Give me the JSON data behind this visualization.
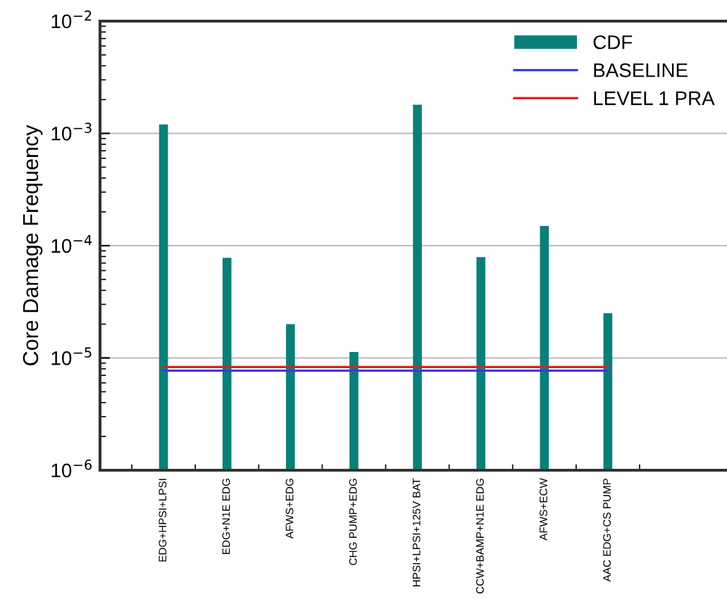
{
  "chart_data": {
    "type": "bar",
    "ylabel": "Core Damage Frequency",
    "categories": [
      "EDG+HPSI+LPSI",
      "EDG+N1E EDG",
      "AFWS+EDG",
      "CHG PUMP+EDG",
      "HPSI+LPSI+125V BAT",
      "CCW+BAMP+N1E EDG",
      "AFWS+ECW",
      "AAC EDG+CS PUMP"
    ],
    "series": [
      {
        "name": "CDF",
        "color": "#0a7f7a",
        "values": [
          0.0012,
          7.8e-05,
          2e-05,
          1.13e-05,
          0.0018,
          7.9e-05,
          0.00015,
          2.5e-05
        ]
      },
      {
        "name": "BASELINE",
        "type": "line",
        "color": "#3a3af0",
        "values": [
          7.7e-06,
          7.7e-06,
          7.7e-06,
          7.7e-06,
          7.7e-06,
          7.7e-06,
          7.7e-06,
          7.7e-06
        ]
      },
      {
        "name": "LEVEL 1 PRA",
        "type": "line",
        "color": "#e02020",
        "values": [
          8.3e-06,
          8.3e-06,
          8.3e-06,
          8.3e-06,
          8.3e-06,
          8.3e-06,
          8.3e-06,
          8.3e-06
        ]
      }
    ],
    "log": true,
    "ylim": [
      1e-06,
      0.01
    ],
    "yticks": [
      {
        "value": 1e-06,
        "label": "10$^{−6}$"
      },
      {
        "value": 1e-05,
        "label": "10$^{−5}$"
      },
      {
        "value": 0.0001,
        "label": "10$^{−4}$"
      },
      {
        "value": 0.001,
        "label": "10$^{−3}$"
      },
      {
        "value": 0.01,
        "label": "10$^{−2}$"
      }
    ],
    "grid": "y",
    "legend": "top right"
  }
}
